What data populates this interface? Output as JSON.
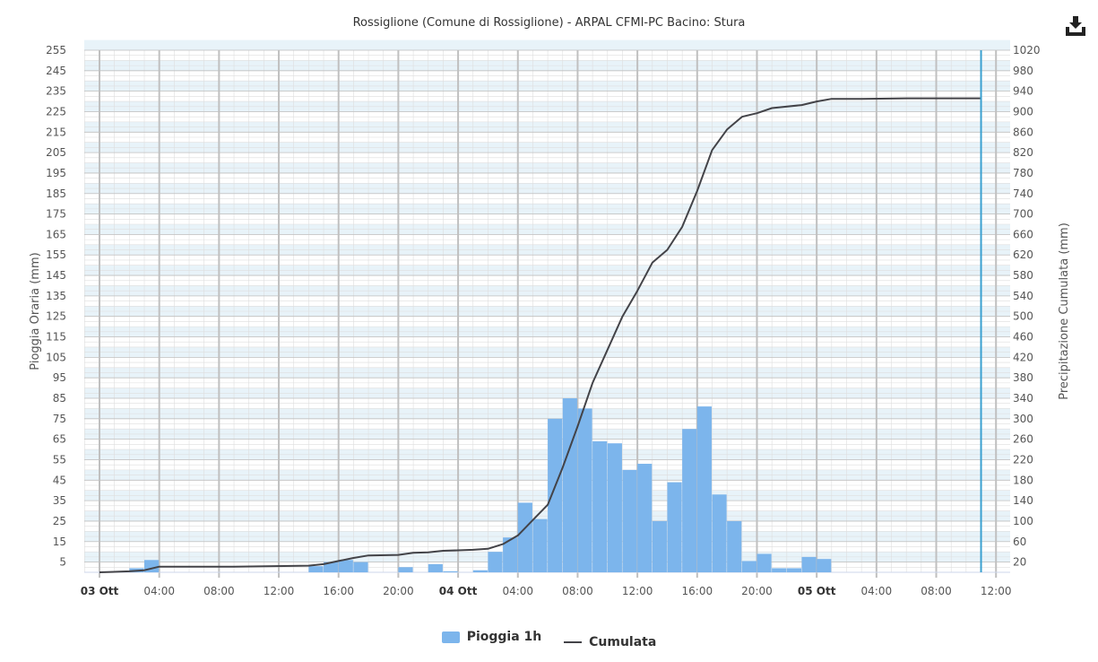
{
  "title": "Rossiglione (Comune di Rossiglione) - ARPAL CFMI-PC Bacino: Stura",
  "colors": {
    "bars": "#7cb5ec",
    "line": "#434348",
    "plot_band": "#e8f3f9",
    "grid_major": "#c0c0c0",
    "grid_minor": "#dedede",
    "current_time_line": "#3aa0d0"
  },
  "icons": {
    "download": "download-icon"
  },
  "legend": {
    "bar_label": "Pioggia 1h",
    "line_label": "Cumulata"
  },
  "chart_data": {
    "type": "bar+line",
    "title": "Rossiglione (Comune di Rossiglione) - ARPAL CFMI-PC Bacino: Stura",
    "x_unit": "hours since 03 Ott 00:00",
    "xlim": [
      0,
      60
    ],
    "x_ticks": [
      {
        "label": "03 Ott",
        "bold": true
      },
      {
        "label": "04:00",
        "bold": false
      },
      {
        "label": "08:00",
        "bold": false
      },
      {
        "label": "12:00",
        "bold": false
      },
      {
        "label": "16:00",
        "bold": false
      },
      {
        "label": "20:00",
        "bold": false
      },
      {
        "label": "04 Ott",
        "bold": true
      },
      {
        "label": "04:00",
        "bold": false
      },
      {
        "label": "08:00",
        "bold": false
      },
      {
        "label": "12:00",
        "bold": false
      },
      {
        "label": "16:00",
        "bold": false
      },
      {
        "label": "20:00",
        "bold": false
      },
      {
        "label": "05 Ott",
        "bold": true
      },
      {
        "label": "04:00",
        "bold": false
      },
      {
        "label": "08:00",
        "bold": false
      },
      {
        "label": "12:00",
        "bold": false
      }
    ],
    "y_left": {
      "label": "Pioggia Oraria (mm)",
      "range": [
        0,
        255
      ],
      "ticks": [
        5,
        15,
        25,
        35,
        45,
        55,
        65,
        75,
        85,
        95,
        105,
        115,
        125,
        135,
        145,
        155,
        165,
        175,
        185,
        195,
        205,
        215,
        225,
        235,
        245,
        255
      ]
    },
    "y_right": {
      "label": "Precipitazione Cumulata (mm)",
      "range": [
        0,
        1020
      ],
      "ticks": [
        20,
        60,
        100,
        140,
        180,
        220,
        260,
        300,
        340,
        380,
        420,
        460,
        500,
        540,
        580,
        620,
        660,
        700,
        740,
        780,
        820,
        860,
        900,
        940,
        980,
        1020
      ]
    },
    "series": [
      {
        "name": "Pioggia 1h",
        "type": "bar",
        "axis": "left",
        "points": [
          [
            2,
            2
          ],
          [
            3,
            6
          ],
          [
            14,
            3
          ],
          [
            15,
            5
          ],
          [
            16,
            6
          ],
          [
            17,
            5
          ],
          [
            20,
            2.5
          ],
          [
            22,
            4
          ],
          [
            23,
            0.5
          ],
          [
            25,
            1
          ],
          [
            26,
            10
          ],
          [
            27,
            17
          ],
          [
            28,
            34
          ],
          [
            29,
            26
          ],
          [
            30,
            75
          ],
          [
            31,
            85
          ],
          [
            32,
            80
          ],
          [
            33,
            64
          ],
          [
            34,
            63
          ],
          [
            35,
            50
          ],
          [
            36,
            53
          ],
          [
            37,
            25
          ],
          [
            38,
            44
          ],
          [
            39,
            70
          ],
          [
            40,
            81
          ],
          [
            41,
            38
          ],
          [
            42,
            25
          ],
          [
            43,
            5.5
          ],
          [
            44,
            9
          ],
          [
            45,
            2
          ],
          [
            46,
            2
          ],
          [
            47,
            7.5
          ],
          [
            48,
            6.5
          ]
        ]
      },
      {
        "name": "Cumulata",
        "type": "line",
        "axis": "right",
        "points": [
          [
            0,
            0
          ],
          [
            2,
            2
          ],
          [
            3,
            4
          ],
          [
            4,
            11
          ],
          [
            9,
            11
          ],
          [
            14,
            13
          ],
          [
            15,
            16
          ],
          [
            16,
            22
          ],
          [
            17,
            28
          ],
          [
            18,
            33
          ],
          [
            20,
            34
          ],
          [
            21,
            38
          ],
          [
            22,
            39
          ],
          [
            23,
            42
          ],
          [
            24,
            43
          ],
          [
            25,
            44
          ],
          [
            26,
            46
          ],
          [
            27,
            55
          ],
          [
            28,
            72
          ],
          [
            29,
            102
          ],
          [
            30,
            132
          ],
          [
            31,
            205
          ],
          [
            32,
            285
          ],
          [
            33,
            370
          ],
          [
            34,
            435
          ],
          [
            35,
            500
          ],
          [
            36,
            550
          ],
          [
            37,
            605
          ],
          [
            38,
            630
          ],
          [
            39,
            675
          ],
          [
            40,
            745
          ],
          [
            41,
            825
          ],
          [
            42,
            865
          ],
          [
            43,
            890
          ],
          [
            44,
            897
          ],
          [
            45,
            907
          ],
          [
            47,
            913
          ],
          [
            48,
            920
          ],
          [
            49,
            925
          ],
          [
            51,
            925
          ],
          [
            54,
            926
          ],
          [
            57,
            926
          ],
          [
            59,
            926
          ]
        ]
      }
    ],
    "current_time_x": 59,
    "grid": true,
    "legend_position": "bottom-center"
  }
}
